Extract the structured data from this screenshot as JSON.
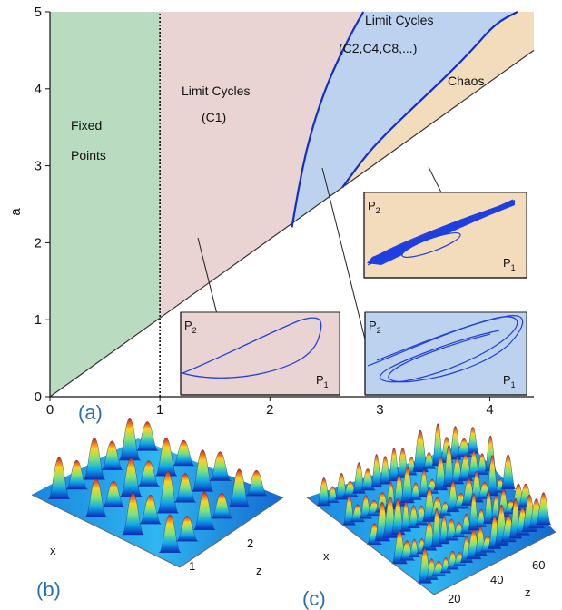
{
  "chart_data": {
    "type": "area",
    "ylabel": "a",
    "xlabel": "",
    "xlim": [
      0,
      4.4
    ],
    "ylim": [
      0,
      5
    ],
    "x_ticks": [
      0,
      1,
      2,
      3,
      4
    ],
    "y_ticks": [
      0,
      1,
      2,
      3,
      4,
      5
    ],
    "boundaries": {
      "vertical_dotted_line": {
        "x": 1
      },
      "diagonal_line": {
        "from": [
          0,
          0
        ],
        "to": [
          4.4,
          4.5
        ]
      },
      "curve_c1_to_c2": [
        [
          2.2,
          2.2
        ],
        [
          2.26,
          2.7
        ],
        [
          2.33,
          3.2
        ],
        [
          2.43,
          3.7
        ],
        [
          2.56,
          4.2
        ],
        [
          2.75,
          4.75
        ],
        [
          2.85,
          5.0
        ]
      ],
      "curve_c2_to_chaos": [
        [
          2.66,
          2.72
        ],
        [
          2.88,
          3.15
        ],
        [
          3.1,
          3.48
        ],
        [
          3.35,
          3.82
        ],
        [
          3.6,
          4.16
        ],
        [
          3.85,
          4.52
        ],
        [
          4.05,
          4.85
        ],
        [
          4.25,
          5.0
        ]
      ]
    },
    "regions": [
      {
        "label_lines": [
          "Fixed",
          "Points"
        ],
        "color": "#b9dbbf"
      },
      {
        "label_lines": [
          "Limit Cycles",
          "(C1)"
        ],
        "color": "#ead3d3"
      },
      {
        "label_lines": [
          "Limit Cycles",
          "(C2,C4,C8,...)"
        ],
        "color": "#bcd2ef"
      },
      {
        "label_lines": [
          "Chaos"
        ],
        "color": "#f3dcbc"
      }
    ],
    "insets": [
      {
        "region": "C1",
        "bg": "#ead3d3",
        "y_label": "P",
        "y_sub": "2",
        "x_label": "P",
        "x_sub": "1"
      },
      {
        "region": "C2",
        "bg": "#bcd2ef",
        "y_label": "P",
        "y_sub": "2",
        "x_label": "P",
        "x_sub": "1"
      },
      {
        "region": "Chaos",
        "bg": "#f3dcbc",
        "y_label": "P",
        "y_sub": "2",
        "x_label": "P",
        "x_sub": "1"
      }
    ]
  },
  "panels": {
    "a": "(a)",
    "b": "(b)",
    "c": "(c)"
  },
  "surface_b": {
    "x_label": "x",
    "z_label": "z",
    "z_ticks": [
      "1",
      "2"
    ]
  },
  "surface_c": {
    "x_label": "x",
    "z_label": "z",
    "z_ticks": [
      "20",
      "40",
      "60"
    ]
  },
  "colors": {
    "trajectory": "#1f3fe0",
    "boundary_curve": "#1030c8",
    "panel_letter": "#2a6fb0"
  }
}
